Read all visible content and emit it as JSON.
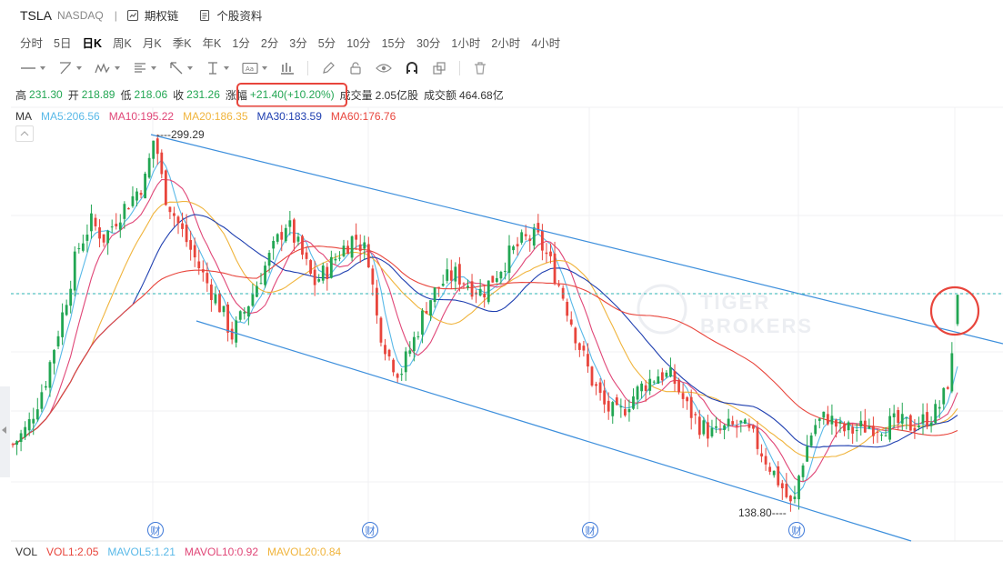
{
  "header": {
    "symbol": "TSLA",
    "exchange": "NASDAQ",
    "separator": "|",
    "links": [
      {
        "label": "期权链",
        "icon": "option-chain-icon"
      },
      {
        "label": "个股资料",
        "icon": "document-icon"
      }
    ]
  },
  "periods": [
    "分时",
    "5日",
    "日K",
    "周K",
    "月K",
    "季K",
    "年K",
    "1分",
    "2分",
    "3分",
    "5分",
    "10分",
    "15分",
    "30分",
    "1小时",
    "2小时",
    "4小时"
  ],
  "active_period": "日K",
  "toolbar_icons": [
    "line-tool-icon",
    "trend-tool-icon",
    "wave-tool-icon",
    "fib-tool-icon",
    "arrow-tool-icon",
    "measure-tool-icon",
    "text-tool-icon",
    "indicator-icon",
    "pencil-icon",
    "lock-icon",
    "eye-icon",
    "magnet-icon",
    "layers-icon",
    "trash-icon"
  ],
  "quote": {
    "high_label": "高",
    "high": "231.30",
    "open_label": "开",
    "open": "218.89",
    "low_label": "低",
    "low": "218.06",
    "close_label": "收",
    "close": "231.26",
    "change_label": "涨幅",
    "change": "+21.40(+10.20%)",
    "volume_label": "成交量",
    "volume": "2.05亿股",
    "turnover_label": "成交额",
    "turnover": "464.68亿"
  },
  "ma": {
    "label": "MA",
    "items": [
      {
        "text": "MA5:206.56",
        "color": "#59b9e8"
      },
      {
        "text": "MA10:195.22",
        "color": "#e04677"
      },
      {
        "text": "MA20:186.35",
        "color": "#f0b43c"
      },
      {
        "text": "MA30:183.59",
        "color": "#1f3fb0"
      },
      {
        "text": "MA60:176.76",
        "color": "#e8453c"
      }
    ]
  },
  "vol": {
    "label": "VOL",
    "items": [
      {
        "text": "VOL1:2.05",
        "color": "#e8453c"
      },
      {
        "text": "MAVOL5:1.21",
        "color": "#59b9e8"
      },
      {
        "text": "MAVOL10:0.92",
        "color": "#e04677"
      },
      {
        "text": "MAVOL20:0.84",
        "color": "#f0b43c"
      }
    ]
  },
  "annotations": {
    "high_marker": "299.29",
    "low_marker": "138.80",
    "earnings_tag": "财"
  },
  "watermark": [
    "TIGER",
    "BROKERS"
  ],
  "colors": {
    "up": "#22a653",
    "down": "#e8453c",
    "trendline": "#3d8fdc",
    "highlight": "#e8453c"
  }
}
